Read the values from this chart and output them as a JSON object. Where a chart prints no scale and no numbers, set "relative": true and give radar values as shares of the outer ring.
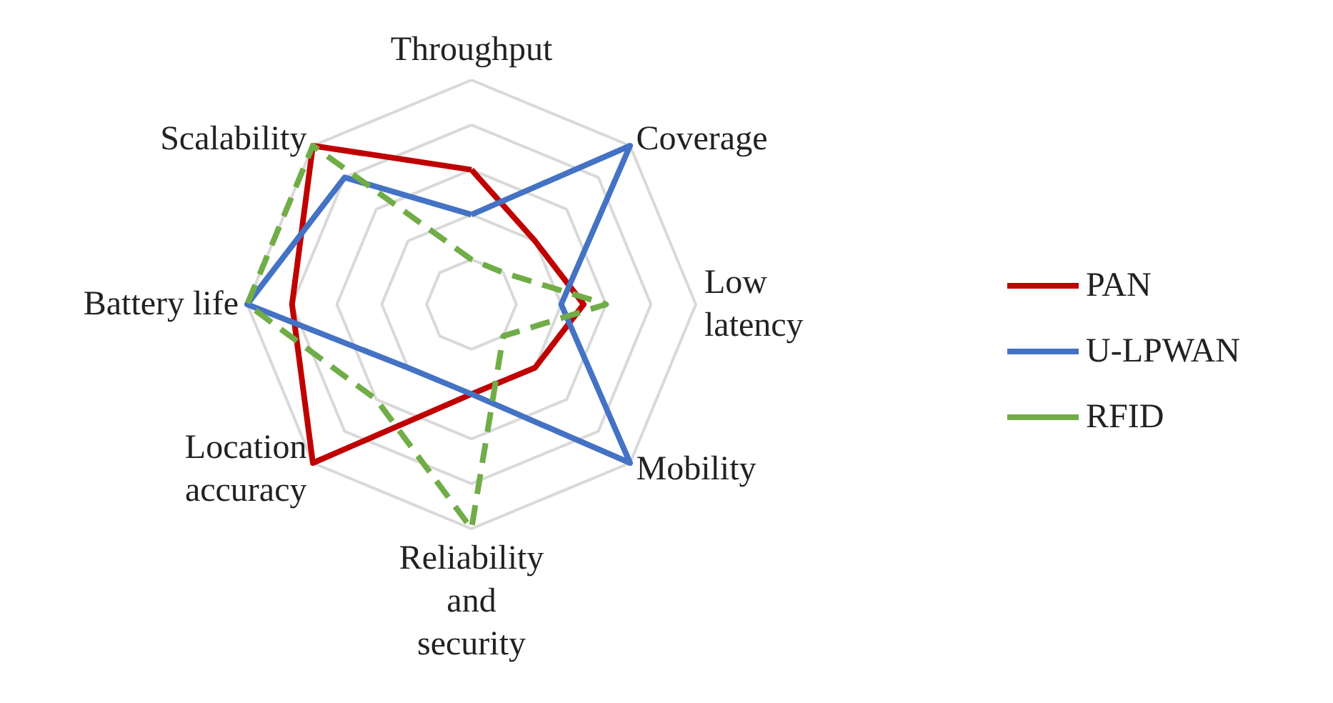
{
  "chart_data": {
    "type": "radar",
    "relative": true,
    "legend": "right",
    "marker": "none",
    "categories": [
      "Throughput",
      "Coverage",
      "Low\nlatency",
      "Mobility",
      "Reliability\nand\nsecurity",
      "Location\naccuracy",
      "Battery life",
      "Scalability"
    ],
    "series": [
      {
        "name": "PAN",
        "color": "#c00000",
        "line_style": "solid",
        "values": [
          0.6,
          0.4,
          0.5,
          0.4,
          0.4,
          1.0,
          0.8,
          1.0
        ]
      },
      {
        "name": "U-LPWAN",
        "color": "#4472c4",
        "line_style": "solid",
        "values": [
          0.4,
          1.0,
          0.4,
          1.0,
          0.4,
          0.4,
          1.0,
          0.8
        ]
      },
      {
        "name": "RFID",
        "color": "#70ad47",
        "line_style": "dashed",
        "values": [
          0.2,
          0.2,
          0.6,
          0.2,
          1.0,
          0.6,
          1.0,
          1.0
        ]
      }
    ]
  }
}
